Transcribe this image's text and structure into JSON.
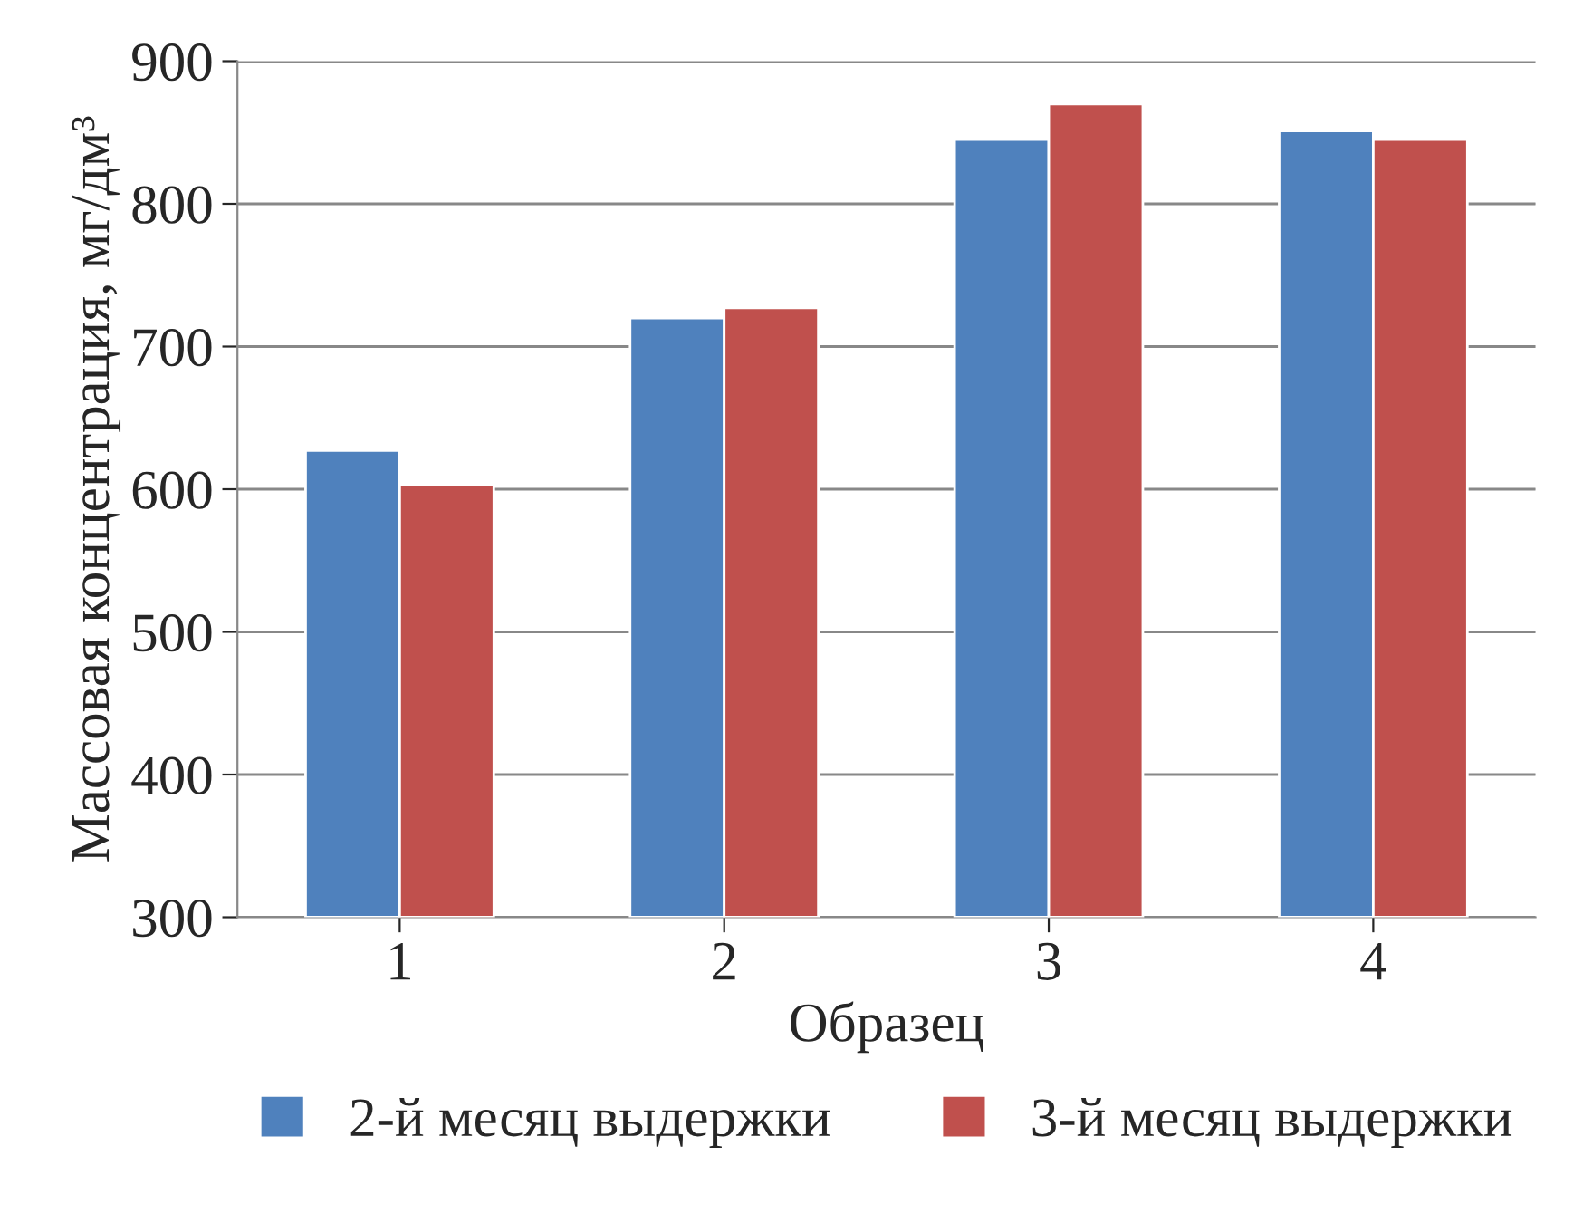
{
  "chart_data": {
    "type": "bar",
    "xlabel": "Образец",
    "ylabel": "Массовая концентрация, мг/дм³",
    "categories": [
      "1",
      "2",
      "3",
      "4"
    ],
    "series": [
      {
        "name": "2-й месяц выдержки",
        "color": "#4f81bd",
        "values": [
          627,
          720,
          845,
          851
        ]
      },
      {
        "name": "3-й месяц выдержки",
        "color": "#c0504d",
        "values": [
          603,
          727,
          870,
          845
        ]
      }
    ],
    "ylim": [
      300,
      900
    ],
    "yticks": [
      300,
      400,
      500,
      600,
      700,
      800,
      900
    ],
    "grid": "y",
    "legend": "bottom"
  }
}
